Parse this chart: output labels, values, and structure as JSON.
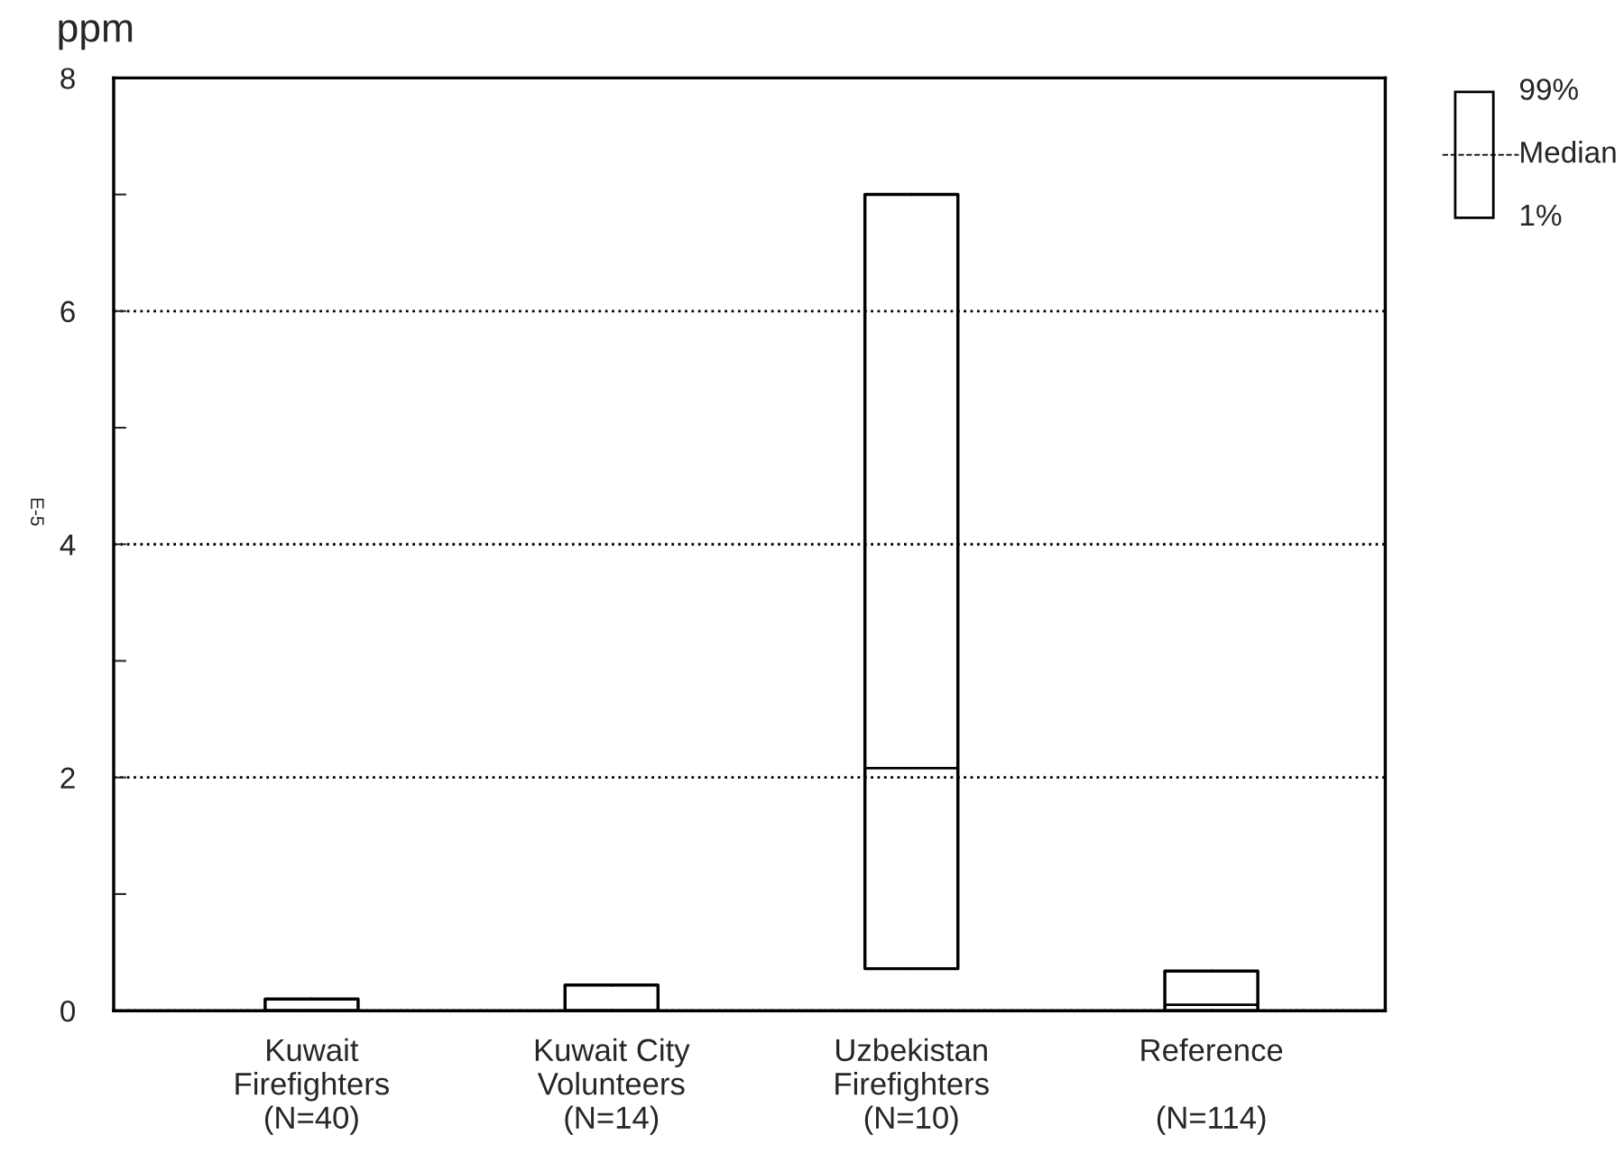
{
  "chart_data": {
    "type": "box",
    "ylabel": "ppm",
    "categories": [
      "Kuwait\nFirefighters\n(N=40)",
      "Kuwait City\nVolunteers\n(N=14)",
      "Uzbekistan\nFirefighters\n(N=10)",
      "Reference\n\n(N=114)"
    ],
    "boxes": [
      {
        "low": 0.0,
        "q1": 0.0,
        "median": 0.0,
        "q3": 0.1,
        "high": 0.1
      },
      {
        "low": 0.0,
        "q1": 0.0,
        "median": 0.0,
        "q3": 0.22,
        "high": 0.22
      },
      {
        "low": 0.36,
        "q1": 0.36,
        "median": 2.08,
        "q3": 7.0,
        "high": 7.0
      },
      {
        "low": 0.0,
        "q1": 0.0,
        "median": 0.05,
        "q3": 0.34,
        "high": 0.34
      }
    ],
    "color": "#000000",
    "ylim": [
      0,
      8
    ],
    "yticks": [
      0,
      {
        "value": 1,
        "label": null
      },
      2,
      {
        "value": 3,
        "label": null
      },
      4,
      {
        "value": 5,
        "label": null
      },
      6,
      {
        "value": 7,
        "label": null
      },
      8
    ],
    "grid": "y",
    "annotations": [
      "99%",
      "Median",
      "1%",
      "E-5"
    ]
  }
}
